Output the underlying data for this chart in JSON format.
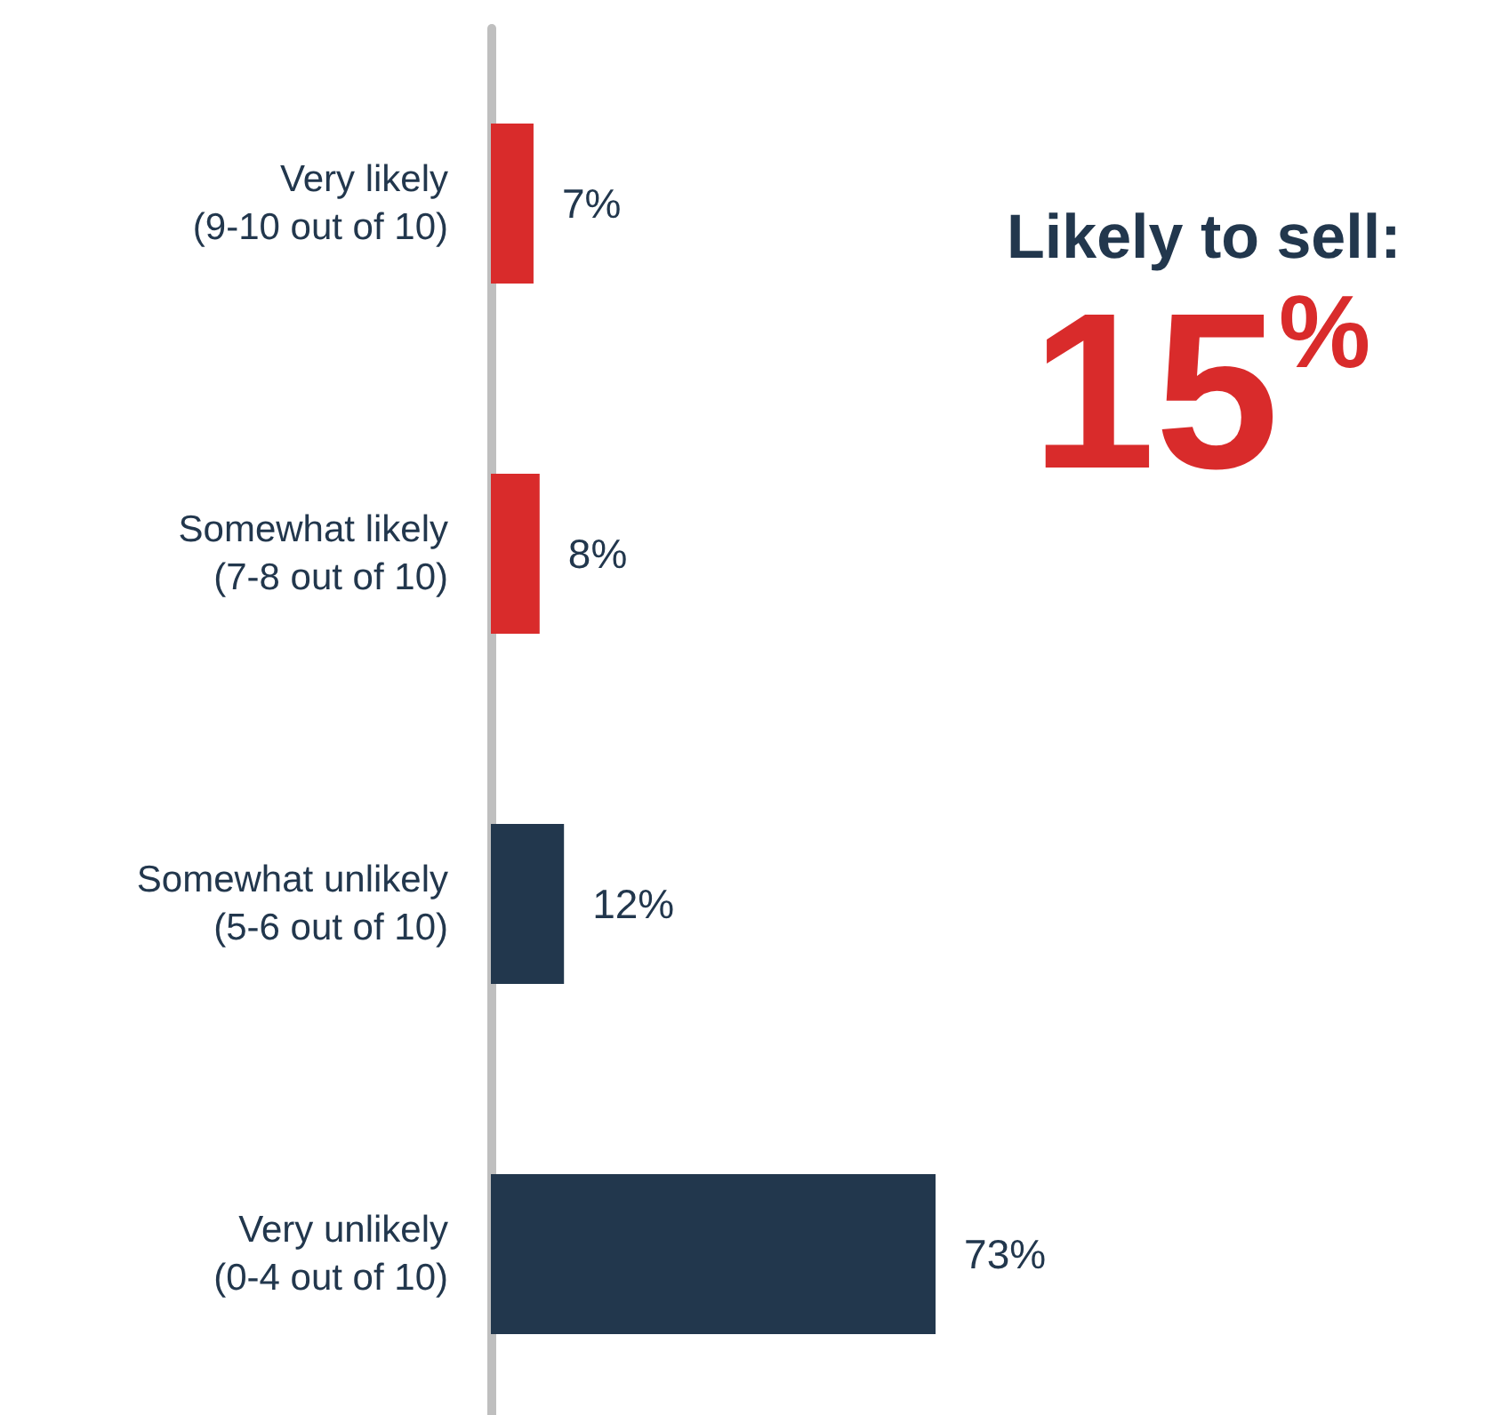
{
  "chart_data": {
    "type": "bar",
    "orientation": "horizontal",
    "categories": [
      "Very likely\n(9-10 out of 10)",
      "Somewhat likely\n(7-8 out of 10)",
      "Somewhat unlikely\n(5-6 out of 10)",
      "Very unlikely\n(0-4 out of 10)"
    ],
    "values": [
      7,
      8,
      12,
      73
    ],
    "value_labels": [
      "7%",
      "8%",
      "12%",
      "73%"
    ],
    "colors": [
      "#d92b2b",
      "#d92b2b",
      "#22374d",
      "#22374d"
    ],
    "annotations": [
      "Likely to sell:",
      "15%"
    ]
  }
}
